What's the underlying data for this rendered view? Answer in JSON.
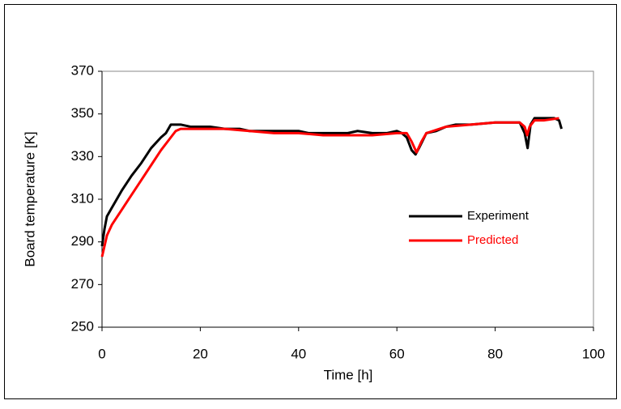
{
  "chart_data": {
    "type": "line",
    "x_label": "Time [h]",
    "y_label": "Board temperature [K]",
    "xlim": [
      0,
      100
    ],
    "xticks": [
      0,
      20,
      40,
      60,
      80,
      100
    ],
    "ylim": [
      250,
      370
    ],
    "yticks": [
      250,
      270,
      290,
      310,
      330,
      350,
      370
    ],
    "grid": false,
    "legend": "center-right",
    "series": [
      {
        "name": "Experiment",
        "color": "#000000",
        "x": [
          0,
          0.5,
          1,
          2,
          4,
          6,
          8,
          10,
          12,
          13,
          14,
          16,
          18,
          20,
          22,
          25,
          28,
          30,
          35,
          40,
          42,
          45,
          48,
          50,
          52,
          55,
          58,
          60,
          61,
          62,
          63,
          63.8,
          64.5,
          66,
          68,
          70,
          72,
          75,
          80,
          85,
          86,
          86.6,
          87.2,
          88,
          90,
          92,
          93,
          93.5
        ],
        "values": [
          288,
          296,
          302,
          306,
          314,
          321,
          327,
          334,
          339,
          341,
          345,
          345,
          344,
          344,
          344,
          343,
          343,
          342,
          342,
          342,
          341,
          341,
          341,
          341,
          342,
          341,
          341,
          342,
          341,
          339,
          333,
          331,
          334,
          341,
          342,
          344,
          345,
          345,
          346,
          346,
          341,
          334,
          345,
          348,
          348,
          348,
          347,
          343
        ]
      },
      {
        "name": "Predicted",
        "color": "#ff0000",
        "x": [
          0,
          0.5,
          1,
          2,
          4,
          6,
          8,
          10,
          12,
          14,
          15,
          16,
          20,
          25,
          30,
          35,
          40,
          45,
          50,
          55,
          60,
          62,
          63,
          64,
          65,
          66,
          70,
          75,
          80,
          85,
          86,
          86.5,
          87,
          88,
          90,
          93
        ],
        "values": [
          283,
          288,
          293,
          298,
          305,
          312,
          319,
          326,
          333,
          339,
          342,
          343,
          343,
          343,
          342,
          341,
          341,
          340,
          340,
          340,
          341,
          341,
          337,
          332,
          337,
          341,
          344,
          345,
          346,
          346,
          344,
          340,
          344,
          347,
          347,
          348
        ]
      }
    ]
  }
}
